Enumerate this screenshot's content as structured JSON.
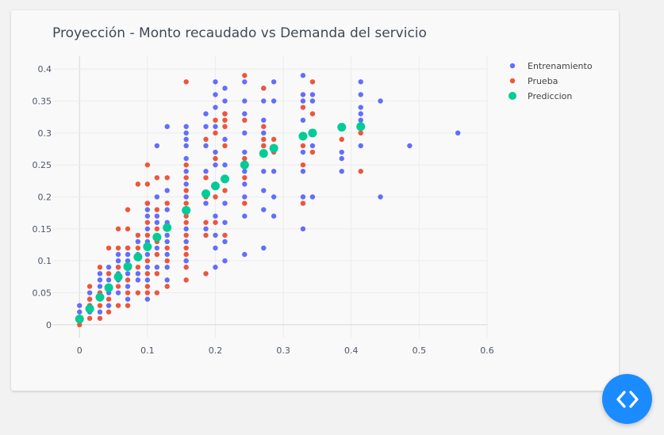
{
  "chart_data": {
    "type": "scatter",
    "title": "Proyección - Monto recaudado vs Demanda del servicio",
    "xlabel": "",
    "ylabel": "",
    "xlim": [
      -0.04,
      0.6
    ],
    "ylim": [
      -0.02,
      0.42
    ],
    "xticks": [
      "0",
      "0.1",
      "0.2",
      "0.3",
      "0.4",
      "0.5",
      "0.6"
    ],
    "yticks": [
      "0",
      "0.05",
      "0.1",
      "0.15",
      "0.2",
      "0.25",
      "0.3",
      "0.35",
      "0.4"
    ],
    "legend_position": "top-right",
    "grid": true,
    "series": [
      {
        "name": "Entrenamiento",
        "color": "#636efa",
        "points": [
          [
            0,
            0.01
          ],
          [
            0,
            0.02
          ],
          [
            0,
            0.03
          ],
          [
            0.015,
            0.02
          ],
          [
            0.015,
            0.03
          ],
          [
            0.015,
            0.04
          ],
          [
            0.015,
            0.05
          ],
          [
            0.03,
            0.02
          ],
          [
            0.03,
            0.04
          ],
          [
            0.03,
            0.06
          ],
          [
            0.03,
            0.07
          ],
          [
            0.03,
            0.08
          ],
          [
            0.043,
            0.03
          ],
          [
            0.043,
            0.05
          ],
          [
            0.043,
            0.07
          ],
          [
            0.043,
            0.09
          ],
          [
            0.057,
            0.05
          ],
          [
            0.057,
            0.07
          ],
          [
            0.057,
            0.08
          ],
          [
            0.057,
            0.09
          ],
          [
            0.057,
            0.1
          ],
          [
            0.057,
            0.11
          ],
          [
            0.071,
            0.04
          ],
          [
            0.071,
            0.06
          ],
          [
            0.071,
            0.08
          ],
          [
            0.071,
            0.1
          ],
          [
            0.071,
            0.11
          ],
          [
            0.071,
            0.12
          ],
          [
            0.086,
            0.07
          ],
          [
            0.086,
            0.08
          ],
          [
            0.086,
            0.11
          ],
          [
            0.086,
            0.13
          ],
          [
            0.1,
            0.04
          ],
          [
            0.1,
            0.07
          ],
          [
            0.1,
            0.09
          ],
          [
            0.1,
            0.11
          ],
          [
            0.1,
            0.13
          ],
          [
            0.1,
            0.15
          ],
          [
            0.1,
            0.17
          ],
          [
            0.1,
            0.18
          ],
          [
            0.1,
            0.19
          ],
          [
            0.114,
            0.09
          ],
          [
            0.114,
            0.12
          ],
          [
            0.114,
            0.14
          ],
          [
            0.114,
            0.16
          ],
          [
            0.114,
            0.17
          ],
          [
            0.114,
            0.2
          ],
          [
            0.114,
            0.28
          ],
          [
            0.129,
            0.07
          ],
          [
            0.129,
            0.09
          ],
          [
            0.129,
            0.11
          ],
          [
            0.129,
            0.13
          ],
          [
            0.129,
            0.14
          ],
          [
            0.129,
            0.16
          ],
          [
            0.129,
            0.18
          ],
          [
            0.129,
            0.21
          ],
          [
            0.129,
            0.31
          ],
          [
            0.157,
            0.1
          ],
          [
            0.157,
            0.13
          ],
          [
            0.157,
            0.15
          ],
          [
            0.157,
            0.18
          ],
          [
            0.157,
            0.2
          ],
          [
            0.157,
            0.22
          ],
          [
            0.157,
            0.24
          ],
          [
            0.157,
            0.26
          ],
          [
            0.157,
            0.28
          ],
          [
            0.157,
            0.29
          ],
          [
            0.157,
            0.3
          ],
          [
            0.157,
            0.31
          ],
          [
            0.186,
            0.15
          ],
          [
            0.186,
            0.19
          ],
          [
            0.186,
            0.24
          ],
          [
            0.186,
            0.28
          ],
          [
            0.186,
            0.31
          ],
          [
            0.186,
            0.33
          ],
          [
            0.2,
            0.09
          ],
          [
            0.2,
            0.12
          ],
          [
            0.2,
            0.14
          ],
          [
            0.2,
            0.17
          ],
          [
            0.2,
            0.25
          ],
          [
            0.2,
            0.27
          ],
          [
            0.2,
            0.31
          ],
          [
            0.2,
            0.34
          ],
          [
            0.2,
            0.36
          ],
          [
            0.2,
            0.38
          ],
          [
            0.214,
            0.1
          ],
          [
            0.214,
            0.13
          ],
          [
            0.214,
            0.16
          ],
          [
            0.214,
            0.19
          ],
          [
            0.214,
            0.25
          ],
          [
            0.214,
            0.29
          ],
          [
            0.214,
            0.33
          ],
          [
            0.214,
            0.35
          ],
          [
            0.214,
            0.37
          ],
          [
            0.243,
            0.11
          ],
          [
            0.243,
            0.17
          ],
          [
            0.243,
            0.2
          ],
          [
            0.243,
            0.22
          ],
          [
            0.243,
            0.24
          ],
          [
            0.243,
            0.27
          ],
          [
            0.243,
            0.3
          ],
          [
            0.243,
            0.33
          ],
          [
            0.243,
            0.35
          ],
          [
            0.243,
            0.38
          ],
          [
            0.271,
            0.12
          ],
          [
            0.271,
            0.18
          ],
          [
            0.271,
            0.21
          ],
          [
            0.271,
            0.24
          ],
          [
            0.271,
            0.28
          ],
          [
            0.271,
            0.3
          ],
          [
            0.271,
            0.32
          ],
          [
            0.271,
            0.35
          ],
          [
            0.271,
            0.37
          ],
          [
            0.286,
            0.17
          ],
          [
            0.286,
            0.2
          ],
          [
            0.286,
            0.24
          ],
          [
            0.286,
            0.35
          ],
          [
            0.286,
            0.38
          ],
          [
            0.329,
            0.15
          ],
          [
            0.329,
            0.2
          ],
          [
            0.329,
            0.24
          ],
          [
            0.329,
            0.27
          ],
          [
            0.329,
            0.32
          ],
          [
            0.329,
            0.35
          ],
          [
            0.329,
            0.36
          ],
          [
            0.329,
            0.39
          ],
          [
            0.343,
            0.2
          ],
          [
            0.343,
            0.28
          ],
          [
            0.343,
            0.35
          ],
          [
            0.343,
            0.36
          ],
          [
            0.386,
            0.24
          ],
          [
            0.386,
            0.26
          ],
          [
            0.386,
            0.27
          ],
          [
            0.414,
            0.28
          ],
          [
            0.414,
            0.32
          ],
          [
            0.414,
            0.33
          ],
          [
            0.414,
            0.34
          ],
          [
            0.414,
            0.36
          ],
          [
            0.414,
            0.38
          ],
          [
            0.443,
            0.2
          ],
          [
            0.443,
            0.35
          ],
          [
            0.486,
            0.28
          ],
          [
            0.557,
            0.3
          ]
        ]
      },
      {
        "name": "Prueba",
        "color": "#ef553b",
        "points": [
          [
            0,
            0
          ],
          [
            0,
            0.01
          ],
          [
            0.015,
            0.01
          ],
          [
            0.015,
            0.03
          ],
          [
            0.015,
            0.04
          ],
          [
            0.015,
            0.06
          ],
          [
            0.03,
            0.01
          ],
          [
            0.03,
            0.03
          ],
          [
            0.03,
            0.05
          ],
          [
            0.03,
            0.09
          ],
          [
            0.043,
            0.02
          ],
          [
            0.043,
            0.04
          ],
          [
            0.043,
            0.06
          ],
          [
            0.043,
            0.08
          ],
          [
            0.043,
            0.12
          ],
          [
            0.057,
            0.03
          ],
          [
            0.057,
            0.06
          ],
          [
            0.057,
            0.09
          ],
          [
            0.057,
            0.12
          ],
          [
            0.057,
            0.15
          ],
          [
            0.071,
            0.03
          ],
          [
            0.071,
            0.05
          ],
          [
            0.071,
            0.07
          ],
          [
            0.071,
            0.09
          ],
          [
            0.071,
            0.12
          ],
          [
            0.071,
            0.15
          ],
          [
            0.071,
            0.18
          ],
          [
            0.086,
            0.05
          ],
          [
            0.086,
            0.09
          ],
          [
            0.086,
            0.12
          ],
          [
            0.086,
            0.14
          ],
          [
            0.086,
            0.22
          ],
          [
            0.1,
            0.05
          ],
          [
            0.1,
            0.06
          ],
          [
            0.1,
            0.08
          ],
          [
            0.1,
            0.1
          ],
          [
            0.1,
            0.12
          ],
          [
            0.1,
            0.14
          ],
          [
            0.1,
            0.16
          ],
          [
            0.1,
            0.19
          ],
          [
            0.1,
            0.22
          ],
          [
            0.1,
            0.25
          ],
          [
            0.114,
            0.05
          ],
          [
            0.114,
            0.08
          ],
          [
            0.114,
            0.11
          ],
          [
            0.114,
            0.13
          ],
          [
            0.114,
            0.15
          ],
          [
            0.114,
            0.18
          ],
          [
            0.114,
            0.23
          ],
          [
            0.129,
            0.06
          ],
          [
            0.129,
            0.1
          ],
          [
            0.129,
            0.12
          ],
          [
            0.129,
            0.15
          ],
          [
            0.129,
            0.19
          ],
          [
            0.129,
            0.23
          ],
          [
            0.157,
            0.07
          ],
          [
            0.157,
            0.09
          ],
          [
            0.157,
            0.11
          ],
          [
            0.157,
            0.12
          ],
          [
            0.157,
            0.14
          ],
          [
            0.157,
            0.16
          ],
          [
            0.157,
            0.17
          ],
          [
            0.157,
            0.19
          ],
          [
            0.157,
            0.21
          ],
          [
            0.157,
            0.23
          ],
          [
            0.157,
            0.25
          ],
          [
            0.157,
            0.38
          ],
          [
            0.186,
            0.08
          ],
          [
            0.186,
            0.14
          ],
          [
            0.186,
            0.16
          ],
          [
            0.186,
            0.2
          ],
          [
            0.186,
            0.23
          ],
          [
            0.186,
            0.29
          ],
          [
            0.2,
            0.16
          ],
          [
            0.2,
            0.2
          ],
          [
            0.2,
            0.22
          ],
          [
            0.2,
            0.26
          ],
          [
            0.2,
            0.3
          ],
          [
            0.2,
            0.32
          ],
          [
            0.214,
            0.14
          ],
          [
            0.214,
            0.21
          ],
          [
            0.214,
            0.28
          ],
          [
            0.214,
            0.31
          ],
          [
            0.214,
            0.32
          ],
          [
            0.214,
            0.33
          ],
          [
            0.243,
            0.19
          ],
          [
            0.243,
            0.23
          ],
          [
            0.243,
            0.26
          ],
          [
            0.243,
            0.32
          ],
          [
            0.243,
            0.39
          ],
          [
            0.271,
            0.28
          ],
          [
            0.271,
            0.29
          ],
          [
            0.271,
            0.31
          ],
          [
            0.271,
            0.37
          ],
          [
            0.286,
            0.27
          ],
          [
            0.286,
            0.29
          ],
          [
            0.329,
            0.19
          ],
          [
            0.329,
            0.25
          ],
          [
            0.329,
            0.28
          ],
          [
            0.329,
            0.34
          ],
          [
            0.343,
            0.27
          ],
          [
            0.343,
            0.33
          ],
          [
            0.343,
            0.38
          ],
          [
            0.386,
            0.29
          ],
          [
            0.414,
            0.24
          ],
          [
            0.414,
            0.3
          ]
        ]
      },
      {
        "name": "Prediccion",
        "color": "#00cc96",
        "points": [
          [
            0,
            0.009
          ],
          [
            0.015,
            0.025
          ],
          [
            0.03,
            0.043
          ],
          [
            0.043,
            0.058
          ],
          [
            0.057,
            0.075
          ],
          [
            0.071,
            0.091
          ],
          [
            0.086,
            0.106
          ],
          [
            0.1,
            0.122
          ],
          [
            0.114,
            0.137
          ],
          [
            0.129,
            0.152
          ],
          [
            0.157,
            0.179
          ],
          [
            0.186,
            0.205
          ],
          [
            0.2,
            0.217
          ],
          [
            0.214,
            0.228
          ],
          [
            0.243,
            0.25
          ],
          [
            0.271,
            0.268
          ],
          [
            0.286,
            0.276
          ],
          [
            0.329,
            0.295
          ],
          [
            0.343,
            0.3
          ],
          [
            0.386,
            0.309
          ],
          [
            0.414,
            0.31
          ]
        ]
      }
    ]
  }
}
